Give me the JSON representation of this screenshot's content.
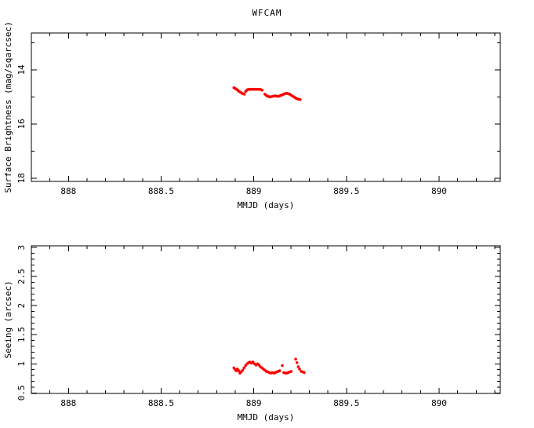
{
  "figure_title": "WFCAM",
  "colors": {
    "background": "#ffffff",
    "axis": "#000000",
    "marker": "#ff0000"
  },
  "chart_data": [
    {
      "id": "surface-brightness-panel",
      "type": "scatter",
      "title": "WFCAM",
      "xlabel": "MMJD (days)",
      "ylabel": "Surface Brightness (mag/sqarcsec)",
      "legend": "none",
      "grid": false,
      "xlim": [
        887.8,
        890.33
      ],
      "ylim_top_to_bottom": [
        12.64,
        18.12
      ],
      "x_major_ticks": [
        {
          "v": 888,
          "label": "888"
        },
        {
          "v": 888.5,
          "label": "888.5"
        },
        {
          "v": 889,
          "label": "889"
        },
        {
          "v": 889.5,
          "label": "889.5"
        },
        {
          "v": 890,
          "label": "890"
        }
      ],
      "x_minor_ticks": [
        887.9,
        888.1,
        888.2,
        888.3,
        888.4,
        888.6,
        888.7,
        888.8,
        888.9,
        889.1,
        889.2,
        889.3,
        889.4,
        889.6,
        889.7,
        889.8,
        889.9,
        890.1,
        890.2,
        890.3
      ],
      "y_major_ticks": [
        {
          "v": 14,
          "label": "14"
        },
        {
          "v": 16,
          "label": "16"
        },
        {
          "v": 18,
          "label": "18"
        }
      ],
      "y_minor_ticks": [
        13,
        15,
        17
      ],
      "marker_color": "#ff0000",
      "points": [
        [
          888.893,
          14.66
        ],
        [
          888.9,
          14.69
        ],
        [
          888.907,
          14.72
        ],
        [
          888.914,
          14.76
        ],
        [
          888.921,
          14.8
        ],
        [
          888.928,
          14.83
        ],
        [
          888.935,
          14.86
        ],
        [
          888.942,
          14.88
        ],
        [
          888.949,
          14.9
        ],
        [
          888.956,
          14.8
        ],
        [
          888.962,
          14.75
        ],
        [
          888.968,
          14.73
        ],
        [
          888.975,
          14.72
        ],
        [
          888.982,
          14.72
        ],
        [
          888.989,
          14.72
        ],
        [
          888.996,
          14.72
        ],
        [
          889.003,
          14.72
        ],
        [
          889.01,
          14.72
        ],
        [
          889.017,
          14.72
        ],
        [
          889.024,
          14.72
        ],
        [
          889.031,
          14.72
        ],
        [
          889.038,
          14.73
        ],
        [
          889.045,
          14.75
        ],
        [
          889.06,
          14.9
        ],
        [
          889.067,
          14.94
        ],
        [
          889.074,
          14.97
        ],
        [
          889.081,
          14.99
        ],
        [
          889.088,
          15.0
        ],
        [
          889.095,
          14.99
        ],
        [
          889.102,
          14.98
        ],
        [
          889.109,
          14.97
        ],
        [
          889.116,
          14.96
        ],
        [
          889.123,
          14.97
        ],
        [
          889.13,
          14.98
        ],
        [
          889.137,
          14.97
        ],
        [
          889.144,
          14.95
        ],
        [
          889.151,
          14.93
        ],
        [
          889.158,
          14.91
        ],
        [
          889.165,
          14.89
        ],
        [
          889.172,
          14.87
        ],
        [
          889.179,
          14.87
        ],
        [
          889.186,
          14.88
        ],
        [
          889.193,
          14.9
        ],
        [
          889.2,
          14.93
        ],
        [
          889.207,
          14.96
        ],
        [
          889.214,
          14.99
        ],
        [
          889.221,
          15.02
        ],
        [
          889.228,
          15.05
        ],
        [
          889.235,
          15.07
        ],
        [
          889.242,
          15.09
        ],
        [
          889.25,
          15.1
        ]
      ]
    },
    {
      "id": "seeing-panel",
      "type": "scatter",
      "title": "",
      "xlabel": "MMJD (days)",
      "ylabel": "Seeing (arcsec)",
      "legend": "none",
      "grid": false,
      "xlim": [
        887.8,
        890.33
      ],
      "ylim_top_to_bottom": [
        3.03,
        0.49
      ],
      "x_major_ticks": [
        {
          "v": 888,
          "label": "888"
        },
        {
          "v": 888.5,
          "label": "888.5"
        },
        {
          "v": 889,
          "label": "889"
        },
        {
          "v": 889.5,
          "label": "889.5"
        },
        {
          "v": 890,
          "label": "890"
        }
      ],
      "x_minor_ticks": [
        887.9,
        888.1,
        888.2,
        888.3,
        888.4,
        888.6,
        888.7,
        888.8,
        888.9,
        889.1,
        889.2,
        889.3,
        889.4,
        889.6,
        889.7,
        889.8,
        889.9,
        890.1,
        890.2,
        890.3
      ],
      "y_major_ticks": [
        {
          "v": 0.5,
          "label": "0.5"
        },
        {
          "v": 1,
          "label": "1"
        },
        {
          "v": 1.5,
          "label": "1.5"
        },
        {
          "v": 2,
          "label": "2"
        },
        {
          "v": 2.5,
          "label": "2.5"
        },
        {
          "v": 3,
          "label": "3"
        }
      ],
      "y_minor_ticks": [
        0.6,
        0.7,
        0.8,
        0.9,
        1.1,
        1.2,
        1.3,
        1.4,
        1.6,
        1.7,
        1.8,
        1.9,
        2.1,
        2.2,
        2.3,
        2.4,
        2.6,
        2.7,
        2.8,
        2.9
      ],
      "marker_color": "#ff0000",
      "points": [
        [
          888.893,
          0.93
        ],
        [
          888.9,
          0.9
        ],
        [
          888.906,
          0.88
        ],
        [
          888.912,
          0.91
        ],
        [
          888.918,
          0.88
        ],
        [
          888.925,
          0.84
        ],
        [
          888.932,
          0.86
        ],
        [
          888.94,
          0.89
        ],
        [
          888.948,
          0.93
        ],
        [
          888.956,
          0.97
        ],
        [
          888.964,
          1.0
        ],
        [
          888.972,
          1.02
        ],
        [
          888.98,
          1.03
        ],
        [
          888.988,
          1.01
        ],
        [
          888.996,
          1.03
        ],
        [
          889.004,
          1.0
        ],
        [
          889.012,
          0.98
        ],
        [
          889.02,
          1.0
        ],
        [
          889.028,
          0.98
        ],
        [
          889.036,
          0.95
        ],
        [
          889.044,
          0.93
        ],
        [
          889.052,
          0.91
        ],
        [
          889.06,
          0.89
        ],
        [
          889.068,
          0.87
        ],
        [
          889.076,
          0.86
        ],
        [
          889.084,
          0.85
        ],
        [
          889.092,
          0.84
        ],
        [
          889.1,
          0.85
        ],
        [
          889.108,
          0.84
        ],
        [
          889.116,
          0.85
        ],
        [
          889.124,
          0.86
        ],
        [
          889.132,
          0.87
        ],
        [
          889.14,
          0.88
        ],
        [
          889.154,
          0.97
        ],
        [
          889.162,
          0.85
        ],
        [
          889.17,
          0.84
        ],
        [
          889.178,
          0.84
        ],
        [
          889.186,
          0.85
        ],
        [
          889.194,
          0.86
        ],
        [
          889.202,
          0.87
        ],
        [
          889.226,
          1.08
        ],
        [
          889.233,
          1.02
        ],
        [
          889.24,
          0.95
        ],
        [
          889.247,
          0.91
        ],
        [
          889.256,
          0.87
        ],
        [
          889.264,
          0.86
        ],
        [
          889.272,
          0.85
        ]
      ]
    }
  ]
}
